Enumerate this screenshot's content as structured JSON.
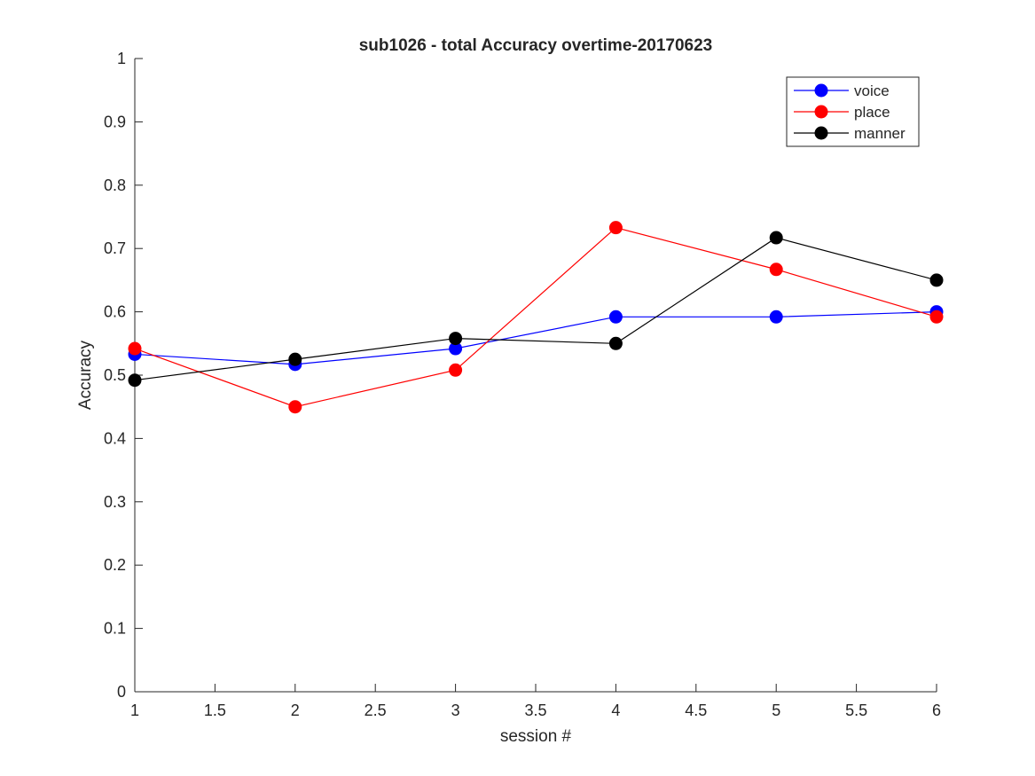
{
  "chart_data": {
    "type": "line",
    "title": "sub1026 - total Accuracy overtime-20170623",
    "xlabel": "session #",
    "ylabel": "Accuracy",
    "xlim": [
      1,
      6
    ],
    "ylim": [
      0,
      1
    ],
    "x_ticks": [
      "1",
      "1.5",
      "2",
      "2.5",
      "3",
      "3.5",
      "4",
      "4.5",
      "5",
      "5.5",
      "6"
    ],
    "y_ticks": [
      "0",
      "0.1",
      "0.2",
      "0.3",
      "0.4",
      "0.5",
      "0.6",
      "0.7",
      "0.8",
      "0.9",
      "1"
    ],
    "x": [
      1,
      2,
      3,
      4,
      5,
      6
    ],
    "grid": false,
    "legend_position": "top-right",
    "series": [
      {
        "name": "voice",
        "color": "#0000ff",
        "values": [
          0.533,
          0.517,
          0.542,
          0.592,
          0.592,
          0.6
        ]
      },
      {
        "name": "place",
        "color": "#ff0000",
        "values": [
          0.542,
          0.45,
          0.508,
          0.733,
          0.667,
          0.592
        ]
      },
      {
        "name": "manner",
        "color": "#000000",
        "values": [
          0.492,
          0.525,
          0.558,
          0.55,
          0.717,
          0.65
        ]
      }
    ]
  }
}
